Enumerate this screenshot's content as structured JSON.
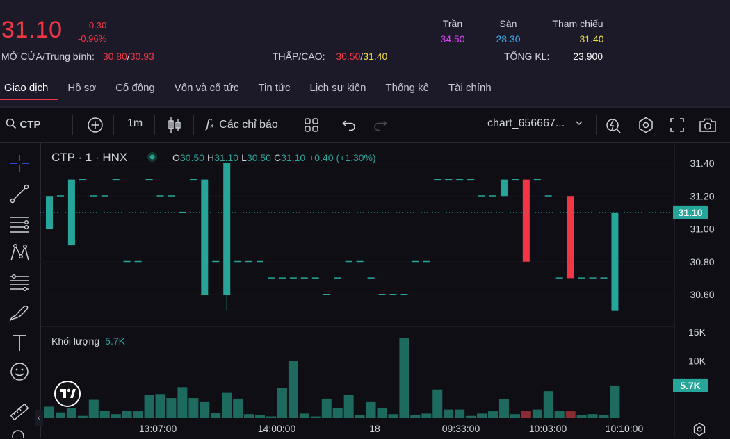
{
  "quote": {
    "price": "31.10",
    "change": "-0.30",
    "change_pct": "-0.96%",
    "ceiling_label": "Trần",
    "ceiling": "34.50",
    "floor_label": "Sàn",
    "floor": "28.30",
    "ref_label": "Tham chiếu",
    "ref": "31.40",
    "open_avg_label": "MỞ CỬA/Trung bình:",
    "open": "30.80",
    "slash1": "/",
    "avg": "30.93",
    "lowhigh_label": "THẤP/CAO:",
    "low": "30.50",
    "slash2": "/",
    "high": "31.40",
    "volume_label": "TỔNG KL:",
    "volume": "23,900"
  },
  "tabs": [
    "Giao dịch",
    "Hồ sơ",
    "Cổ đông",
    "Vốn và cổ tức",
    "Tin tức",
    "Lịch sự kiện",
    "Thống kê",
    "Tài chính"
  ],
  "toolbar": {
    "symbol": "CTP",
    "interval": "1m",
    "indicators": "Các chỉ báo",
    "layout_name": "chart_656667..."
  },
  "legend": {
    "title": "CTP · 1 · HNX",
    "o_label": "O",
    "o": "30.50",
    "h_label": "H",
    "h": "31.10",
    "l_label": "L",
    "l": "30.50",
    "c_label": "C",
    "c": "31.10",
    "change": "+0.40 (+1.30%)",
    "volume_label": "Khối lượng",
    "volume_value": "5.7K"
  },
  "colors": {
    "up": "#26a69a",
    "down": "#f23645",
    "accent_red": "#f23645",
    "yellow": "#f0e040",
    "purple": "#e040fb",
    "cyan": "#30b0f0"
  },
  "chart_data": {
    "type": "candlestick",
    "price_axis": {
      "ticks": [
        "31.40",
        "31.20",
        "31.00",
        "30.80",
        "30.60"
      ],
      "range": [
        30.5,
        31.45
      ],
      "last_price_label": "31.10"
    },
    "volume_axis": {
      "ticks": [
        "15K",
        "10K"
      ],
      "range": [
        0,
        15000
      ],
      "last_volume_label": "5.7K"
    },
    "time_ticks": [
      "13:07:00",
      "14:00:00",
      "18",
      "09:33:00",
      "10:03:00",
      "10:10:00"
    ],
    "candles": [
      {
        "o": 31.0,
        "h": 31.2,
        "l": 31.0,
        "c": 31.2,
        "v": 2000
      },
      {
        "o": 31.2,
        "h": 31.2,
        "l": 31.2,
        "c": 31.2,
        "v": 1000
      },
      {
        "o": 30.9,
        "h": 31.3,
        "l": 30.9,
        "c": 31.3,
        "v": 1800
      },
      {
        "o": 31.3,
        "h": 31.3,
        "l": 31.3,
        "c": 31.3,
        "v": 400
      },
      {
        "o": 31.2,
        "h": 31.2,
        "l": 31.2,
        "c": 31.2,
        "v": 3200
      },
      {
        "o": 31.2,
        "h": 31.2,
        "l": 31.2,
        "c": 31.2,
        "v": 1300
      },
      {
        "o": 31.3,
        "h": 31.3,
        "l": 31.3,
        "c": 31.3,
        "v": 700
      },
      {
        "o": 30.8,
        "h": 30.8,
        "l": 30.8,
        "c": 30.8,
        "v": 1300
      },
      {
        "o": 30.8,
        "h": 30.8,
        "l": 30.8,
        "c": 30.8,
        "v": 1200
      },
      {
        "o": 31.3,
        "h": 31.3,
        "l": 31.3,
        "c": 31.3,
        "v": 4000
      },
      {
        "o": 31.2,
        "h": 31.2,
        "l": 31.2,
        "c": 31.2,
        "v": 4200
      },
      {
        "o": 31.2,
        "h": 31.2,
        "l": 31.2,
        "c": 31.2,
        "v": 3500
      },
      {
        "o": 31.1,
        "h": 31.1,
        "l": 31.1,
        "c": 31.1,
        "v": 5400
      },
      {
        "o": 31.3,
        "h": 31.3,
        "l": 31.3,
        "c": 31.3,
        "v": 3500
      },
      {
        "o": 30.6,
        "h": 31.3,
        "l": 30.6,
        "c": 31.3,
        "v": 2800
      },
      {
        "o": 30.8,
        "h": 30.8,
        "l": 30.8,
        "c": 30.8,
        "v": 900
      },
      {
        "o": 30.6,
        "h": 31.4,
        "l": 30.5,
        "c": 31.4,
        "v": 4400
      },
      {
        "o": 30.8,
        "h": 30.8,
        "l": 30.8,
        "c": 30.8,
        "v": 3400
      },
      {
        "o": 30.8,
        "h": 30.8,
        "l": 30.8,
        "c": 30.8,
        "v": 700
      },
      {
        "o": 30.8,
        "h": 30.8,
        "l": 30.8,
        "c": 30.8,
        "v": 500
      },
      {
        "o": 30.7,
        "h": 30.7,
        "l": 30.7,
        "c": 30.7,
        "v": 300
      },
      {
        "o": 30.7,
        "h": 30.7,
        "l": 30.7,
        "c": 30.7,
        "v": 5200
      },
      {
        "o": 30.7,
        "h": 30.7,
        "l": 30.7,
        "c": 30.7,
        "v": 10000
      },
      {
        "o": 30.7,
        "h": 30.7,
        "l": 30.7,
        "c": 30.7,
        "v": 800
      },
      {
        "o": 30.7,
        "h": 30.7,
        "l": 30.7,
        "c": 30.7,
        "v": 300
      },
      {
        "o": 30.6,
        "h": 30.6,
        "l": 30.6,
        "c": 30.6,
        "v": 3400
      },
      {
        "o": 30.7,
        "h": 30.7,
        "l": 30.7,
        "c": 30.7,
        "v": 1700
      },
      {
        "o": 30.8,
        "h": 30.8,
        "l": 30.8,
        "c": 30.8,
        "v": 4000
      },
      {
        "o": 30.8,
        "h": 30.8,
        "l": 30.8,
        "c": 30.8,
        "v": 500
      },
      {
        "o": 30.7,
        "h": 30.7,
        "l": 30.7,
        "c": 30.7,
        "v": 2800
      },
      {
        "o": 30.6,
        "h": 30.6,
        "l": 30.6,
        "c": 30.6,
        "v": 1800
      },
      {
        "o": 30.6,
        "h": 30.6,
        "l": 30.6,
        "c": 30.6,
        "v": 700
      },
      {
        "o": 30.6,
        "h": 30.6,
        "l": 30.6,
        "c": 30.6,
        "v": 14000
      },
      {
        "o": 30.8,
        "h": 30.8,
        "l": 30.8,
        "c": 30.8,
        "v": 600
      },
      {
        "o": 30.8,
        "h": 30.8,
        "l": 30.8,
        "c": 30.8,
        "v": 800
      },
      {
        "o": 31.3,
        "h": 31.3,
        "l": 31.3,
        "c": 31.3,
        "v": 5000
      },
      {
        "o": 31.3,
        "h": 31.3,
        "l": 31.3,
        "c": 31.3,
        "v": 1500
      },
      {
        "o": 31.3,
        "h": 31.3,
        "l": 31.3,
        "c": 31.3,
        "v": 1500
      },
      {
        "o": 31.3,
        "h": 31.3,
        "l": 31.3,
        "c": 31.3,
        "v": 400
      },
      {
        "o": 31.2,
        "h": 31.2,
        "l": 31.2,
        "c": 31.2,
        "v": 800
      },
      {
        "o": 31.2,
        "h": 31.2,
        "l": 31.2,
        "c": 31.2,
        "v": 1200
      },
      {
        "o": 31.2,
        "h": 31.3,
        "l": 31.2,
        "c": 31.3,
        "v": 3300
      },
      {
        "o": 31.3,
        "h": 31.3,
        "l": 31.3,
        "c": 31.3,
        "v": 700
      },
      {
        "o": 31.3,
        "h": 31.3,
        "l": 30.8,
        "c": 30.8,
        "v": 1200
      },
      {
        "o": 31.3,
        "h": 31.3,
        "l": 31.3,
        "c": 31.3,
        "v": 1500
      },
      {
        "o": 31.2,
        "h": 31.2,
        "l": 31.2,
        "c": 31.2,
        "v": 4700
      },
      {
        "o": 30.7,
        "h": 30.7,
        "l": 30.7,
        "c": 30.7,
        "v": 1300
      },
      {
        "o": 31.2,
        "h": 31.2,
        "l": 30.7,
        "c": 30.7,
        "v": 1200
      },
      {
        "o": 30.7,
        "h": 30.7,
        "l": 30.7,
        "c": 30.7,
        "v": 600
      },
      {
        "o": 30.7,
        "h": 30.7,
        "l": 30.7,
        "c": 30.7,
        "v": 700
      },
      {
        "o": 30.7,
        "h": 30.7,
        "l": 30.7,
        "c": 30.7,
        "v": 600
      },
      {
        "o": 30.5,
        "h": 31.1,
        "l": 30.5,
        "c": 31.1,
        "v": 5700
      }
    ]
  }
}
